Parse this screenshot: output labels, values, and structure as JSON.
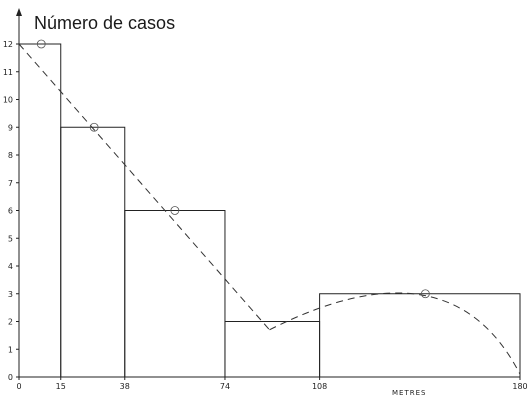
{
  "chart_data": {
    "type": "bar",
    "title": "",
    "ylabel": "Número de casos",
    "xlabel": "METRES",
    "bins": [
      {
        "x0": 0,
        "x1": 15,
        "value": 12
      },
      {
        "x0": 15,
        "x1": 38,
        "value": 9
      },
      {
        "x0": 38,
        "x1": 74,
        "value": 6
      },
      {
        "x0": 74,
        "x1": 108,
        "value": 2
      },
      {
        "x0": 108,
        "x1": 180,
        "value": 3
      }
    ],
    "x_ticks": [
      0,
      15,
      38,
      74,
      108,
      180
    ],
    "y_ticks": [
      0,
      1,
      2,
      3,
      4,
      5,
      6,
      7,
      8,
      9,
      10,
      11,
      12
    ],
    "xlim": [
      0,
      180
    ],
    "ylim": [
      0,
      12
    ],
    "grid": false,
    "trend_lines": [
      {
        "style": "dashed",
        "shape": "straight",
        "points": [
          [
            0,
            12
          ],
          [
            90,
            1.7
          ]
        ]
      },
      {
        "style": "dashed",
        "shape": "curve",
        "points": [
          [
            90,
            1.7
          ],
          [
            145,
            2.95
          ],
          [
            180,
            0.1
          ]
        ]
      }
    ],
    "markers": [
      [
        8,
        12
      ],
      [
        27,
        9
      ],
      [
        56,
        6
      ],
      [
        146,
        3
      ]
    ]
  }
}
